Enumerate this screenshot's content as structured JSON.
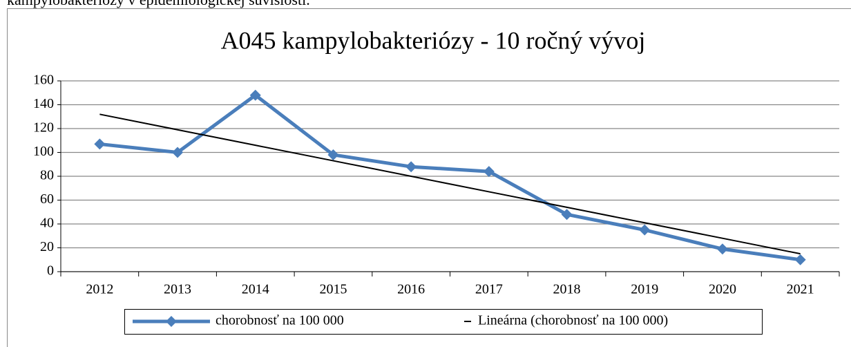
{
  "above_text": "kampylobakteriózy v epidemiologickej súvislosti.",
  "chart_data": {
    "type": "line",
    "title": "A045 kampylobakteriózy - 10 ročný vývoj",
    "categories": [
      "2012",
      "2013",
      "2014",
      "2015",
      "2016",
      "2017",
      "2018",
      "2019",
      "2020",
      "2021"
    ],
    "series": [
      {
        "name": "chorobnosť na 100 000",
        "color": "#4a7ebb",
        "marker": "diamond",
        "values": [
          107,
          100,
          148,
          98,
          88,
          84,
          48,
          35,
          19,
          10
        ]
      },
      {
        "name": "Lineárna (chorobnosť na 100 000)",
        "color": "#000000",
        "marker": "none",
        "values": [
          132,
          119,
          106,
          93,
          80,
          67,
          54,
          41,
          28,
          15
        ]
      }
    ],
    "ylim": [
      0,
      160
    ],
    "yticks": [
      0,
      20,
      40,
      60,
      80,
      100,
      120,
      140,
      160
    ],
    "grid": true,
    "legend": "bottom"
  }
}
